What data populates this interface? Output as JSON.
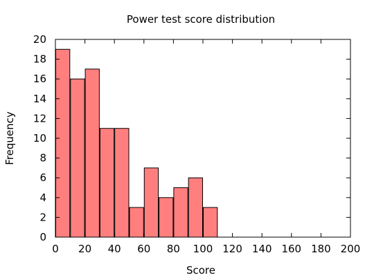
{
  "chart_data": {
    "type": "bar",
    "title": "Power test score distribution",
    "xlabel": "Score",
    "ylabel": "Frequency",
    "xlim": [
      0,
      200
    ],
    "ylim": [
      0,
      20
    ],
    "x_ticks": [
      "0",
      "20",
      "40",
      "60",
      "80",
      "100",
      "120",
      "140",
      "160",
      "180",
      "200"
    ],
    "y_ticks": [
      "0",
      "2",
      "4",
      "6",
      "8",
      "10",
      "12",
      "14",
      "16",
      "18",
      "20"
    ],
    "bin_width": 10,
    "bins": [
      {
        "start": 0,
        "end": 10,
        "value": 19
      },
      {
        "start": 10,
        "end": 20,
        "value": 16
      },
      {
        "start": 20,
        "end": 30,
        "value": 17
      },
      {
        "start": 30,
        "end": 40,
        "value": 11
      },
      {
        "start": 40,
        "end": 50,
        "value": 11
      },
      {
        "start": 50,
        "end": 60,
        "value": 3
      },
      {
        "start": 60,
        "end": 70,
        "value": 7
      },
      {
        "start": 70,
        "end": 80,
        "value": 4
      },
      {
        "start": 80,
        "end": 90,
        "value": 5
      },
      {
        "start": 90,
        "end": 100,
        "value": 6
      },
      {
        "start": 100,
        "end": 110,
        "value": 3
      }
    ],
    "bar_color": "#ff7f7f",
    "bar_edge_color": "#000000",
    "grid": false,
    "legend": "none"
  }
}
